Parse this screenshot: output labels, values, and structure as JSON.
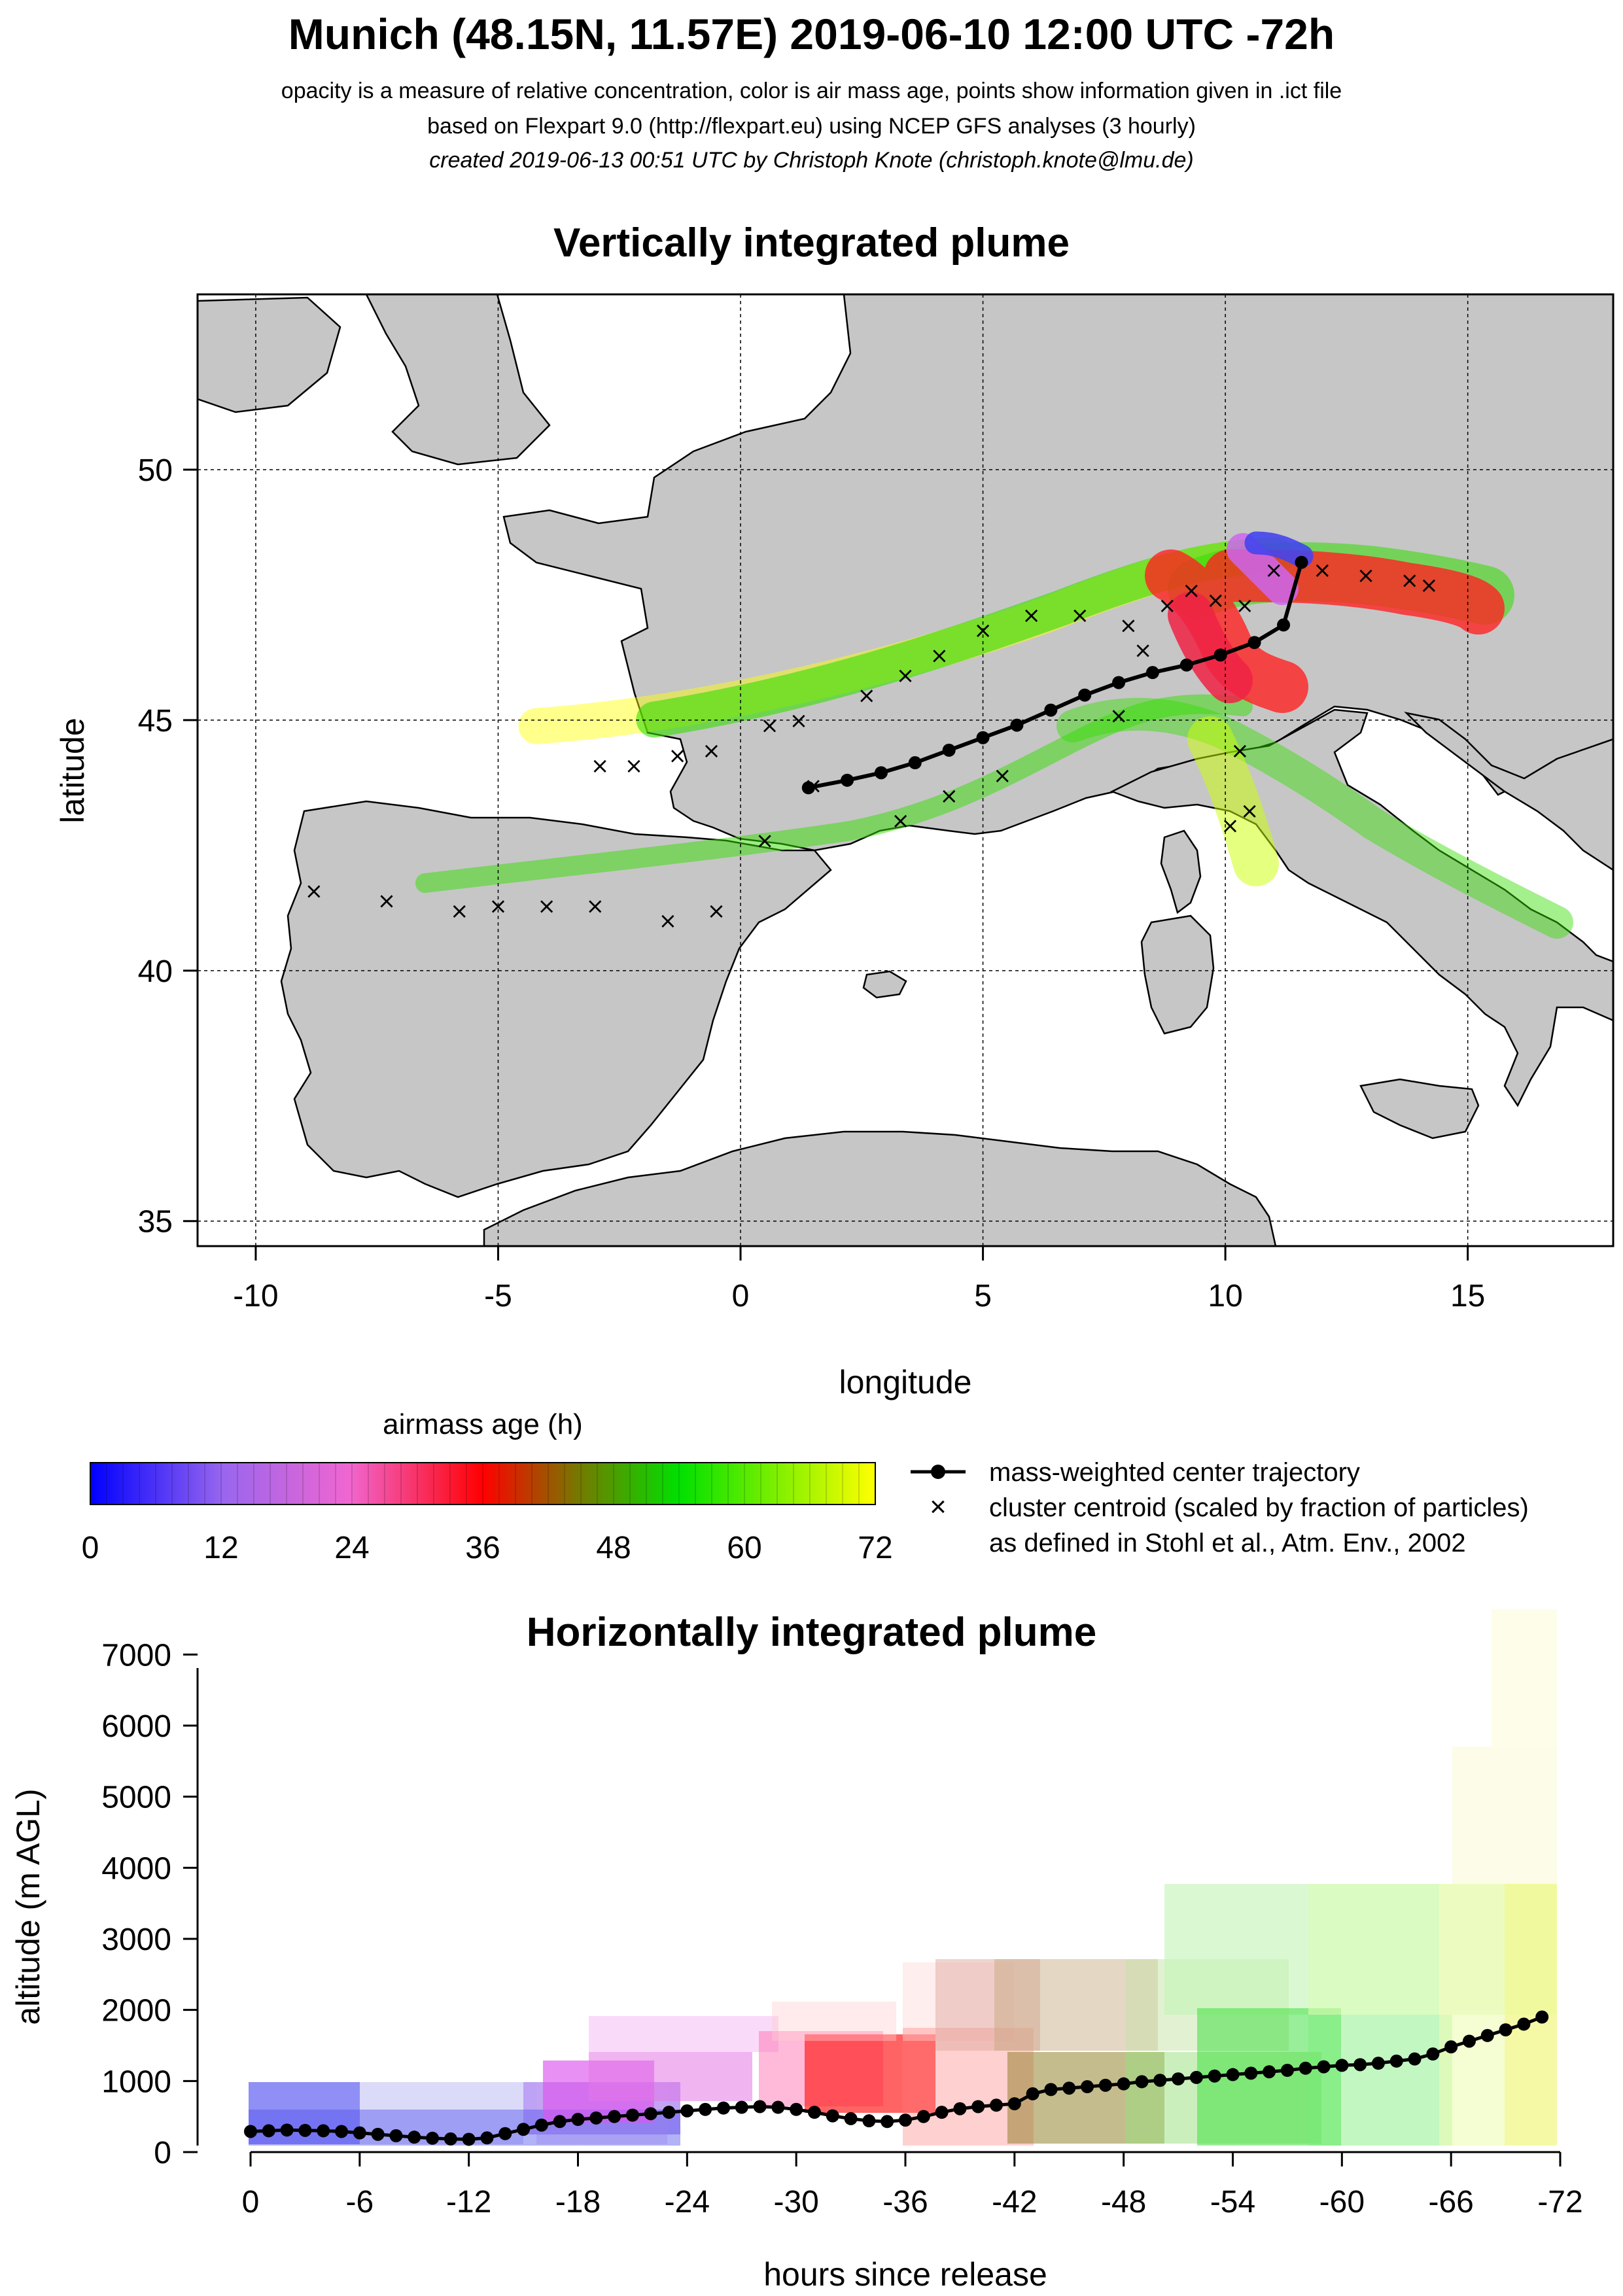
{
  "header": {
    "title": "Munich (48.15N, 11.57E) 2019-06-10 12:00 UTC -72h",
    "subtitle1": "opacity is a measure of relative concentration, color is air mass age, points show information given in .ict file",
    "subtitle2": "based on Flexpart 9.0 (http://flexpart.eu) using NCEP GFS analyses (3 hourly)",
    "subtitle3": "created 2019-06-13 00:51 UTC by Christoph Knote (christoph.knote@lmu.de)"
  },
  "colors": {
    "axis": "#000000",
    "land": "#c8c8c8",
    "land_dark": "#9a9a9a",
    "coast": "#000000"
  },
  "chart_data": [
    {
      "type": "scatter",
      "title": "Vertically integrated plume",
      "xlabel": "longitude",
      "ylabel": "latitude",
      "xlim": [
        -11.2,
        18
      ],
      "ylim": [
        34.5,
        53.5
      ],
      "xticks": [
        -10,
        -5,
        0,
        5,
        10,
        15
      ],
      "yticks": [
        35,
        40,
        45,
        50
      ],
      "grid": true,
      "series": [
        {
          "name": "mass-weighted center trajectory",
          "x": [
            11.57,
            11.2,
            10.6,
            9.9,
            9.2,
            8.5,
            7.8,
            7.1,
            6.4,
            5.7,
            5.0,
            4.3,
            3.6,
            2.9,
            2.2,
            1.4
          ],
          "y": [
            48.15,
            46.9,
            46.55,
            46.3,
            46.1,
            45.95,
            45.75,
            45.5,
            45.2,
            44.9,
            44.65,
            44.4,
            44.15,
            43.95,
            43.8,
            43.65
          ]
        },
        {
          "name": "cluster centroid (scaled by fraction of particles)",
          "x": [
            11.0,
            12.0,
            12.9,
            13.8,
            14.2,
            10.4,
            9.8,
            9.3,
            8.8,
            8.3,
            7.8,
            10.3,
            10.5,
            10.1,
            8.0,
            7.0,
            6.0,
            5.0,
            4.1,
            3.4,
            2.6,
            1.2,
            0.6,
            -0.6,
            -1.3,
            -2.2,
            -2.9,
            5.4,
            4.3,
            3.3,
            1.5,
            0.5,
            -0.5,
            -1.5,
            -3.0,
            -4.0,
            -5.0,
            -5.8,
            -7.3,
            -8.8
          ],
          "y": [
            48.0,
            48.0,
            47.9,
            47.8,
            47.7,
            47.3,
            47.4,
            47.6,
            47.3,
            46.4,
            45.1,
            44.4,
            43.2,
            42.9,
            46.9,
            47.1,
            47.1,
            46.8,
            46.3,
            45.9,
            45.5,
            45.0,
            44.9,
            44.4,
            44.3,
            44.1,
            44.1,
            43.9,
            43.5,
            43.0,
            43.7,
            42.6,
            41.2,
            41.0,
            41.3,
            41.3,
            41.3,
            41.2,
            41.4,
            41.6
          ]
        }
      ]
    },
    {
      "type": "scatter",
      "title": "Horizontally integrated plume",
      "xlabel": "hours since release",
      "ylabel": "altitude (m AGL)",
      "xlim": [
        0,
        -72
      ],
      "ylim": [
        0,
        7500
      ],
      "xticks": [
        0,
        -6,
        -12,
        -18,
        -24,
        -30,
        -36,
        -42,
        -48,
        -54,
        -60,
        -66,
        -72
      ],
      "yticks": [
        0,
        1000,
        2000,
        3000,
        4000,
        5000,
        6000,
        7000
      ],
      "series": [
        {
          "name": "mass-weighted center trajectory",
          "x": [
            0,
            -1,
            -2,
            -3,
            -4,
            -5,
            -6,
            -7,
            -8,
            -9,
            -10,
            -11,
            -12,
            -13,
            -14,
            -15,
            -16,
            -17,
            -18,
            -19,
            -20,
            -21,
            -22,
            -23,
            -24,
            -25,
            -26,
            -27,
            -28,
            -29,
            -30,
            -31,
            -32,
            -33,
            -34,
            -35,
            -36,
            -37,
            -38,
            -39,
            -40,
            -41,
            -42,
            -43,
            -44,
            -45,
            -46,
            -47,
            -48,
            -49,
            -50,
            -51,
            -52,
            -53,
            -54,
            -55,
            -56,
            -57,
            -58,
            -59,
            -60,
            -61,
            -62,
            -63,
            -64,
            -65,
            -66,
            -67,
            -68,
            -69,
            -70,
            -71
          ],
          "y": [
            290,
            300,
            310,
            305,
            300,
            290,
            270,
            250,
            230,
            210,
            195,
            185,
            180,
            200,
            260,
            320,
            380,
            430,
            460,
            480,
            500,
            520,
            540,
            560,
            580,
            600,
            620,
            630,
            640,
            630,
            600,
            560,
            510,
            470,
            440,
            430,
            450,
            500,
            560,
            610,
            640,
            660,
            680,
            820,
            880,
            900,
            920,
            940,
            960,
            990,
            1010,
            1030,
            1050,
            1070,
            1090,
            1110,
            1130,
            1150,
            1180,
            1200,
            1220,
            1230,
            1250,
            1280,
            1310,
            1380,
            1480,
            1560,
            1640,
            1720,
            1800,
            1900
          ]
        }
      ]
    }
  ],
  "legend": {
    "colorbar_title": "airmass age (h)",
    "colorbar_ticks": [
      "0",
      "12",
      "24",
      "36",
      "48",
      "60",
      "72"
    ],
    "center_label": "mass-weighted center trajectory",
    "cluster_label": "cluster centroid (scaled by fraction of particles)",
    "cluster_note": "as defined in Stohl et al., Atm. Env., 2002"
  }
}
